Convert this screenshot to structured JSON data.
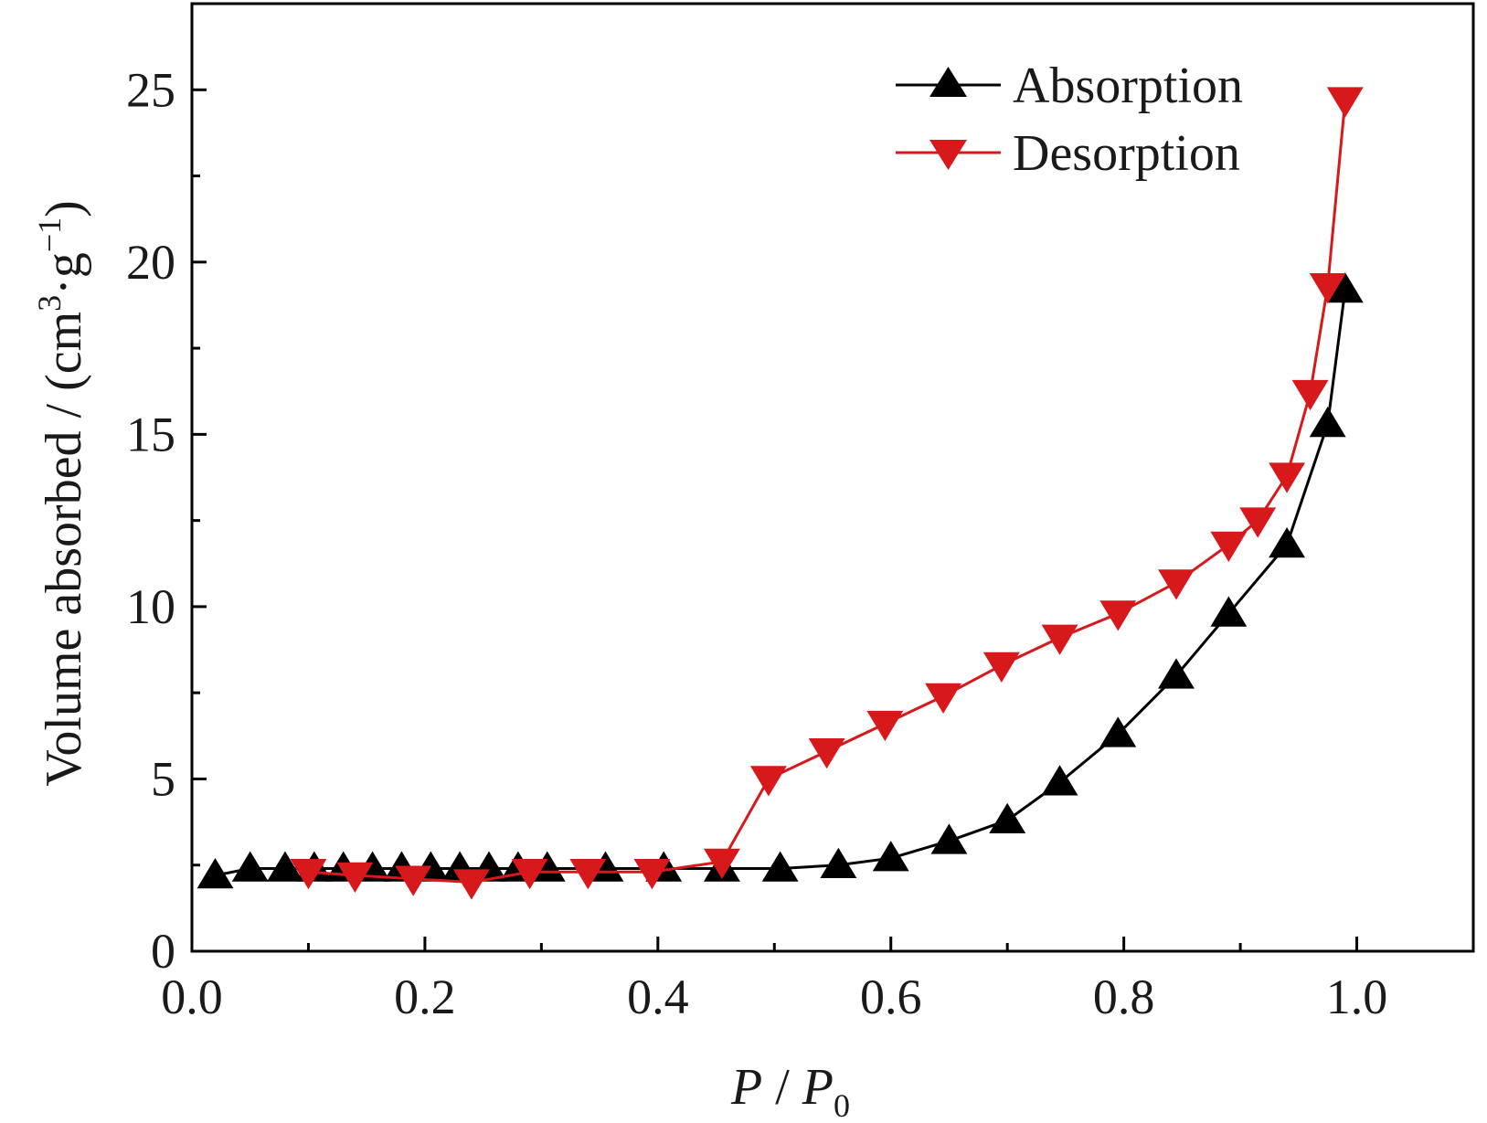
{
  "chart_data": {
    "type": "line",
    "title": "",
    "xlabel": {
      "italic1": "P",
      "sep": " / ",
      "italic2": "P",
      "sub": "0"
    },
    "ylabel": {
      "main": "Volume absorbed / (cm",
      "sup1": "3",
      "mid": "·g",
      "sup2": "−1",
      "end": ")"
    },
    "xlim": [
      0,
      1.1
    ],
    "ylim": [
      0,
      27.5
    ],
    "xticks": [
      0.0,
      0.2,
      0.4,
      0.6,
      0.8,
      1.0
    ],
    "xtick_labels": [
      "0.0",
      "0.2",
      "0.4",
      "0.6",
      "0.8",
      "1.0"
    ],
    "yticks": [
      0,
      5,
      10,
      15,
      20,
      25
    ],
    "ytick_labels": [
      "0",
      "5",
      "10",
      "15",
      "20",
      "25"
    ],
    "grid": false,
    "legend_position": "top-right",
    "series": [
      {
        "name": "Absorption",
        "color": "#000000",
        "marker": "triangle-up",
        "x": [
          0.02,
          0.05,
          0.08,
          0.105,
          0.13,
          0.155,
          0.18,
          0.205,
          0.23,
          0.255,
          0.28,
          0.305,
          0.355,
          0.405,
          0.455,
          0.505,
          0.555,
          0.6,
          0.65,
          0.7,
          0.745,
          0.795,
          0.845,
          0.89,
          0.94,
          0.975,
          0.99
        ],
        "y": [
          2.2,
          2.4,
          2.4,
          2.4,
          2.4,
          2.4,
          2.4,
          2.4,
          2.4,
          2.4,
          2.4,
          2.4,
          2.4,
          2.4,
          2.4,
          2.4,
          2.5,
          2.7,
          3.2,
          3.8,
          4.9,
          6.3,
          8.0,
          9.8,
          11.8,
          15.3,
          19.2
        ]
      },
      {
        "name": "Desorption",
        "color": "#d7191c",
        "marker": "triangle-down",
        "x": [
          0.99,
          0.975,
          0.96,
          0.94,
          0.915,
          0.89,
          0.845,
          0.795,
          0.745,
          0.695,
          0.645,
          0.595,
          0.545,
          0.495,
          0.455,
          0.395,
          0.34,
          0.29,
          0.24,
          0.19,
          0.14,
          0.1
        ],
        "y": [
          24.7,
          19.3,
          16.2,
          13.8,
          12.5,
          11.8,
          10.7,
          9.8,
          9.1,
          8.3,
          7.4,
          6.6,
          5.8,
          5.0,
          2.6,
          2.3,
          2.3,
          2.3,
          2.0,
          2.1,
          2.2,
          2.3
        ]
      }
    ]
  }
}
